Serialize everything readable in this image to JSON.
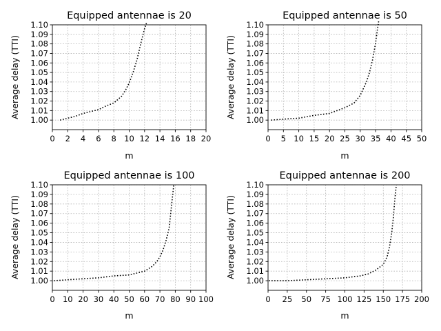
{
  "chart_data": [
    {
      "type": "line",
      "title": "Equipped antennae is 20",
      "xlabel": "m",
      "ylabel": "Average delay (TTI)",
      "xlim": [
        0,
        20
      ],
      "ylim": [
        0.99,
        1.1
      ],
      "xticks": [
        0,
        2,
        4,
        6,
        8,
        10,
        12,
        14,
        16,
        18,
        20
      ],
      "yticks": [
        1.0,
        1.01,
        1.02,
        1.03,
        1.04,
        1.05,
        1.06,
        1.07,
        1.08,
        1.09,
        1.1
      ],
      "ytick_labels": [
        "1.00",
        "1.01",
        "1.02",
        "1.03",
        "1.04",
        "1.05",
        "1.06",
        "1.07",
        "1.08",
        "1.09",
        "1.10"
      ],
      "grid": true,
      "line_style": "dotted",
      "color": "#000000",
      "series": [
        {
          "x": [
            1,
            2,
            3,
            4,
            5,
            6,
            7,
            8,
            9,
            9.5,
            10,
            10.5,
            11,
            11.5,
            12,
            12.3
          ],
          "y": [
            1.0,
            1.002,
            1.004,
            1.007,
            1.009,
            1.011,
            1.015,
            1.018,
            1.025,
            1.031,
            1.039,
            1.05,
            1.063,
            1.08,
            1.096,
            1.103
          ]
        }
      ]
    },
    {
      "type": "line",
      "title": "Equipped antennae is 50",
      "xlabel": "m",
      "ylabel": "Average delay (TTI)",
      "xlim": [
        0,
        50
      ],
      "ylim": [
        0.99,
        1.1
      ],
      "xticks": [
        0,
        5,
        10,
        15,
        20,
        25,
        30,
        35,
        40,
        45,
        50
      ],
      "yticks": [
        1.0,
        1.01,
        1.02,
        1.03,
        1.04,
        1.05,
        1.06,
        1.07,
        1.08,
        1.09,
        1.1
      ],
      "ytick_labels": [
        "1.00",
        "1.01",
        "1.02",
        "1.03",
        "1.04",
        "1.05",
        "1.06",
        "1.07",
        "1.08",
        "1.09",
        "1.10"
      ],
      "grid": true,
      "line_style": "dotted",
      "color": "#000000",
      "series": [
        {
          "x": [
            1,
            5,
            10,
            15,
            20,
            25,
            28,
            30,
            32,
            33,
            34,
            35,
            35.5,
            36
          ],
          "y": [
            1.0,
            1.001,
            1.002,
            1.005,
            1.007,
            1.013,
            1.018,
            1.026,
            1.04,
            1.05,
            1.063,
            1.081,
            1.093,
            1.104
          ]
        }
      ]
    },
    {
      "type": "line",
      "title": "Equipped antennae is 100",
      "xlabel": "m",
      "ylabel": "Average delay (TTI)",
      "xlim": [
        0,
        100
      ],
      "ylim": [
        0.99,
        1.1
      ],
      "xticks": [
        0,
        10,
        20,
        30,
        40,
        50,
        60,
        70,
        80,
        90,
        100
      ],
      "yticks": [
        1.0,
        1.01,
        1.02,
        1.03,
        1.04,
        1.05,
        1.06,
        1.07,
        1.08,
        1.09,
        1.1
      ],
      "ytick_labels": [
        "1.00",
        "1.01",
        "1.02",
        "1.03",
        "1.04",
        "1.05",
        "1.06",
        "1.07",
        "1.08",
        "1.09",
        "1.10"
      ],
      "grid": true,
      "line_style": "dotted",
      "color": "#000000",
      "series": [
        {
          "x": [
            1,
            10,
            20,
            30,
            40,
            50,
            55,
            60,
            65,
            68,
            70,
            72,
            74,
            76,
            77,
            78,
            79
          ],
          "y": [
            1.0,
            1.001,
            1.002,
            1.003,
            1.005,
            1.006,
            1.008,
            1.01,
            1.015,
            1.02,
            1.025,
            1.032,
            1.042,
            1.055,
            1.07,
            1.085,
            1.1
          ]
        }
      ]
    },
    {
      "type": "line",
      "title": "Equipped antennae is 200",
      "xlabel": "m",
      "ylabel": "Average delay (TTI)",
      "xlim": [
        0,
        200
      ],
      "ylim": [
        0.99,
        1.1
      ],
      "xticks": [
        0,
        25,
        50,
        75,
        100,
        125,
        150,
        175,
        200
      ],
      "yticks": [
        1.0,
        1.01,
        1.02,
        1.03,
        1.04,
        1.05,
        1.06,
        1.07,
        1.08,
        1.09,
        1.1
      ],
      "ytick_labels": [
        "1.00",
        "1.01",
        "1.02",
        "1.03",
        "1.04",
        "1.05",
        "1.06",
        "1.07",
        "1.08",
        "1.09",
        "1.10"
      ],
      "grid": true,
      "line_style": "dotted",
      "color": "#000000",
      "series": [
        {
          "x": [
            1,
            25,
            50,
            75,
            100,
            120,
            130,
            140,
            150,
            155,
            158,
            161,
            163,
            165,
            167
          ],
          "y": [
            1.0,
            1.0,
            1.001,
            1.002,
            1.003,
            1.005,
            1.007,
            1.011,
            1.017,
            1.025,
            1.035,
            1.05,
            1.065,
            1.085,
            1.1
          ]
        }
      ]
    }
  ]
}
